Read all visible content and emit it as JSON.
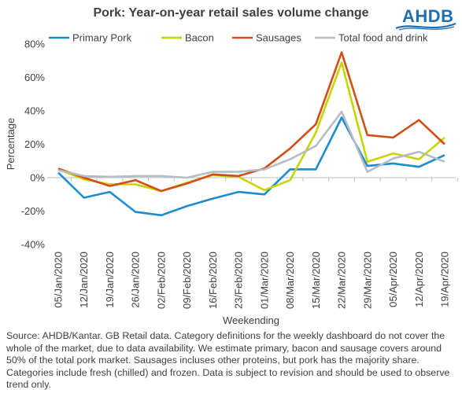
{
  "title": "Pork: Year-on-year retail sales volume change",
  "logo": {
    "text": "AHDB",
    "color": "#1f6eb4"
  },
  "source_note": "Source: AHDB/Kantar. GB Retail data. Category definitions for the weekly dashboard do not cover the whole of the market, due to data availability. We estimate primary, bacon and sausage covers around 50% of the total pork market. Sausages incluses other proteins, but pork has the majority share. Categories include fresh (chilled) and frozen. Data is subject to revision and should be used to observe trend only.",
  "chart_data": {
    "type": "line",
    "title": "Pork: Year-on-year retail sales volume change",
    "xlabel": "Weekending",
    "ylabel": "Percentage",
    "ylim": [
      -40,
      80
    ],
    "yticks": [
      -40,
      -20,
      0,
      20,
      40,
      60,
      80
    ],
    "ytick_labels": [
      "-40%",
      "-20%",
      "0%",
      "20%",
      "40%",
      "60%",
      "80%"
    ],
    "grid": false,
    "legend_position": "top",
    "categories": [
      "05/Jan/2020",
      "12/Jan/2020",
      "19/Jan/2020",
      "26/Jan/2020",
      "02/Feb/2020",
      "09/Feb/2020",
      "16/Feb/2020",
      "23/Feb/2020",
      "01/Mar/2020",
      "08/Mar/2020",
      "15/Mar/2020",
      "22/Mar/2020",
      "29/Mar/2020",
      "05/Apr/2020",
      "12/Apr/2020",
      "19/Apr/2020"
    ],
    "series": [
      {
        "name": "Primary Pork",
        "color": "#1b8ccf",
        "values": [
          3,
          -12,
          -8.5,
          -20.5,
          -22.5,
          -17,
          -12.5,
          -8.5,
          -10,
          5,
          5,
          36,
          7,
          8.5,
          6.5,
          13.5
        ]
      },
      {
        "name": "Bacon",
        "color": "#c8d400",
        "values": [
          5,
          -1,
          -4,
          -4,
          -8,
          -3,
          1.5,
          0.5,
          -7.5,
          -1.5,
          27,
          69,
          9.5,
          14.5,
          11,
          24
        ]
      },
      {
        "name": "Sausages",
        "color": "#d14e17",
        "values": [
          5.5,
          0,
          -5,
          -1.5,
          -8,
          -3.5,
          2,
          1,
          5.5,
          17.5,
          32,
          75,
          25.5,
          24,
          34.5,
          20
        ]
      },
      {
        "name": "Total food and drink",
        "color": "#b4bcc6",
        "values": [
          4.5,
          1,
          0.5,
          1,
          1,
          0,
          3.5,
          3.5,
          5,
          11,
          19,
          39.5,
          3.5,
          11.5,
          15.5,
          9.5
        ]
      }
    ]
  }
}
